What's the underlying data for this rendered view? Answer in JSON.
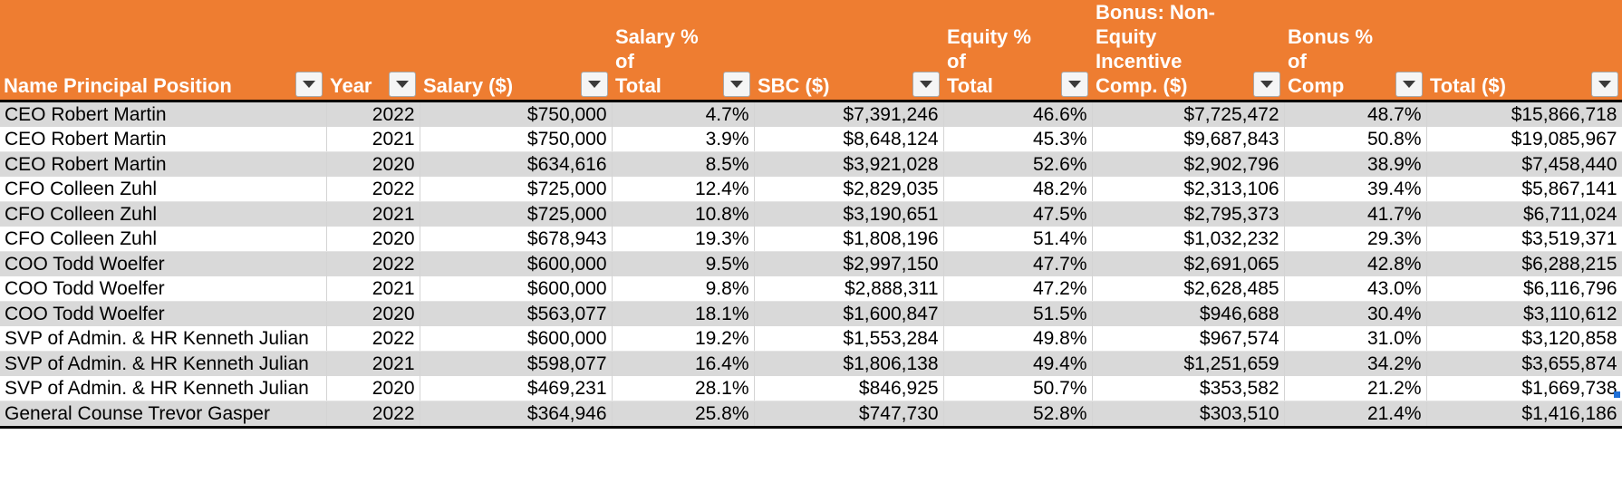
{
  "headers": [
    "Name Principal Position",
    "Year",
    "Salary ($)",
    "Salary % of\nTotal",
    "SBC ($)",
    "Equity % of\nTotal",
    "Bonus: Non-\nEquity Incentive\nComp.  ($)",
    "Bonus % of\nComp",
    "Total ($)"
  ],
  "rows": [
    [
      "CEO Robert Martin",
      "2022",
      "$750,000",
      "4.7%",
      "$7,391,246",
      "46.6%",
      "$7,725,472",
      "48.7%",
      "$15,866,718"
    ],
    [
      "CEO Robert Martin",
      "2021",
      "$750,000",
      "3.9%",
      "$8,648,124",
      "45.3%",
      "$9,687,843",
      "50.8%",
      "$19,085,967"
    ],
    [
      "CEO Robert Martin",
      "2020",
      "$634,616",
      "8.5%",
      "$3,921,028",
      "52.6%",
      "$2,902,796",
      "38.9%",
      "$7,458,440"
    ],
    [
      "CFO Colleen Zuhl",
      "2022",
      "$725,000",
      "12.4%",
      "$2,829,035",
      "48.2%",
      "$2,313,106",
      "39.4%",
      "$5,867,141"
    ],
    [
      "CFO Colleen Zuhl",
      "2021",
      "$725,000",
      "10.8%",
      "$3,190,651",
      "47.5%",
      "$2,795,373",
      "41.7%",
      "$6,711,024"
    ],
    [
      "CFO Colleen Zuhl",
      "2020",
      "$678,943",
      "19.3%",
      "$1,808,196",
      "51.4%",
      "$1,032,232",
      "29.3%",
      "$3,519,371"
    ],
    [
      "COO Todd Woelfer",
      "2022",
      "$600,000",
      "9.5%",
      "$2,997,150",
      "47.7%",
      "$2,691,065",
      "42.8%",
      "$6,288,215"
    ],
    [
      "COO Todd Woelfer",
      "2021",
      "$600,000",
      "9.8%",
      "$2,888,311",
      "47.2%",
      "$2,628,485",
      "43.0%",
      "$6,116,796"
    ],
    [
      "COO Todd Woelfer",
      "2020",
      "$563,077",
      "18.1%",
      "$1,600,847",
      "51.5%",
      "$946,688",
      "30.4%",
      "$3,110,612"
    ],
    [
      "SVP of Admin. & HR Kenneth Julian",
      "2022",
      "$600,000",
      "19.2%",
      "$1,553,284",
      "49.8%",
      "$967,574",
      "31.0%",
      "$3,120,858"
    ],
    [
      "SVP of Admin. & HR Kenneth Julian",
      "2021",
      "$598,077",
      "16.4%",
      "$1,806,138",
      "49.4%",
      "$1,251,659",
      "34.2%",
      "$3,655,874"
    ],
    [
      "SVP of Admin. & HR Kenneth Julian",
      "2020",
      "$469,231",
      "28.1%",
      "$846,925",
      "50.7%",
      "$353,582",
      "21.2%",
      "$1,669,738"
    ],
    [
      "General Counse Trevor Gasper",
      "2022",
      "$364,946",
      "25.8%",
      "$747,730",
      "52.8%",
      "$303,510",
      "21.4%",
      "$1,416,186"
    ]
  ],
  "numeric_columns": [
    false,
    true,
    true,
    true,
    true,
    true,
    true,
    true,
    true
  ],
  "colors": {
    "header_bg": "#ee7d31",
    "header_text": "#ffffff",
    "band": "#d9d9d9"
  },
  "icons": {
    "filter": "filter-dropdown-icon"
  }
}
